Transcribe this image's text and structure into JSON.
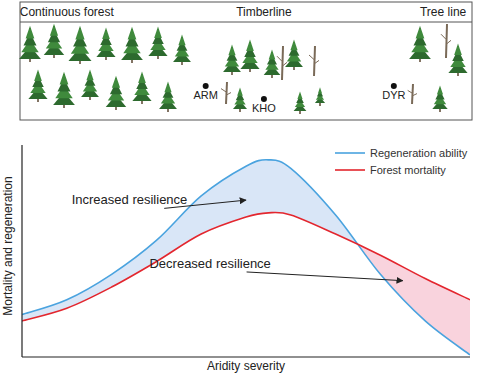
{
  "chart_data": {
    "type": "line",
    "x_label": "Aridity severity",
    "y_label": "Mortality and regeneration",
    "x": [
      0,
      10,
      20,
      30,
      40,
      50,
      55,
      60,
      70,
      80,
      90,
      100
    ],
    "xlim": [
      0,
      100
    ],
    "ylim": [
      0,
      100
    ],
    "tick_labels": false,
    "legend": "upper right",
    "series": [
      {
        "name": "Regeneration ability",
        "color": "#4aa3df",
        "values": [
          20,
          27,
          39,
          55,
          76,
          90,
          93,
          89,
          67,
          39,
          17,
          1
        ]
      },
      {
        "name": "Forest mortality",
        "color": "#e3262e",
        "values": [
          17,
          23,
          33,
          45,
          58,
          66,
          68,
          67,
          58,
          48,
          37,
          27
        ]
      }
    ],
    "annotations": [
      {
        "text": "Increased resilience",
        "x": 24,
        "y": 72,
        "target_x": 50,
        "target_y": 74
      },
      {
        "text": "Decreased resilience",
        "x": 42,
        "y": 42,
        "target_x": 85,
        "target_y": 36
      }
    ],
    "zones": [
      {
        "label": "Continuous forest",
        "x": 10
      },
      {
        "label": "Timberline",
        "x": 54
      },
      {
        "label": "Tree line",
        "x": 94
      }
    ],
    "sites": [
      {
        "label": "ARM",
        "x": 41
      },
      {
        "label": "KHO",
        "x": 54
      },
      {
        "label": "DYR",
        "x": 83
      }
    ]
  }
}
